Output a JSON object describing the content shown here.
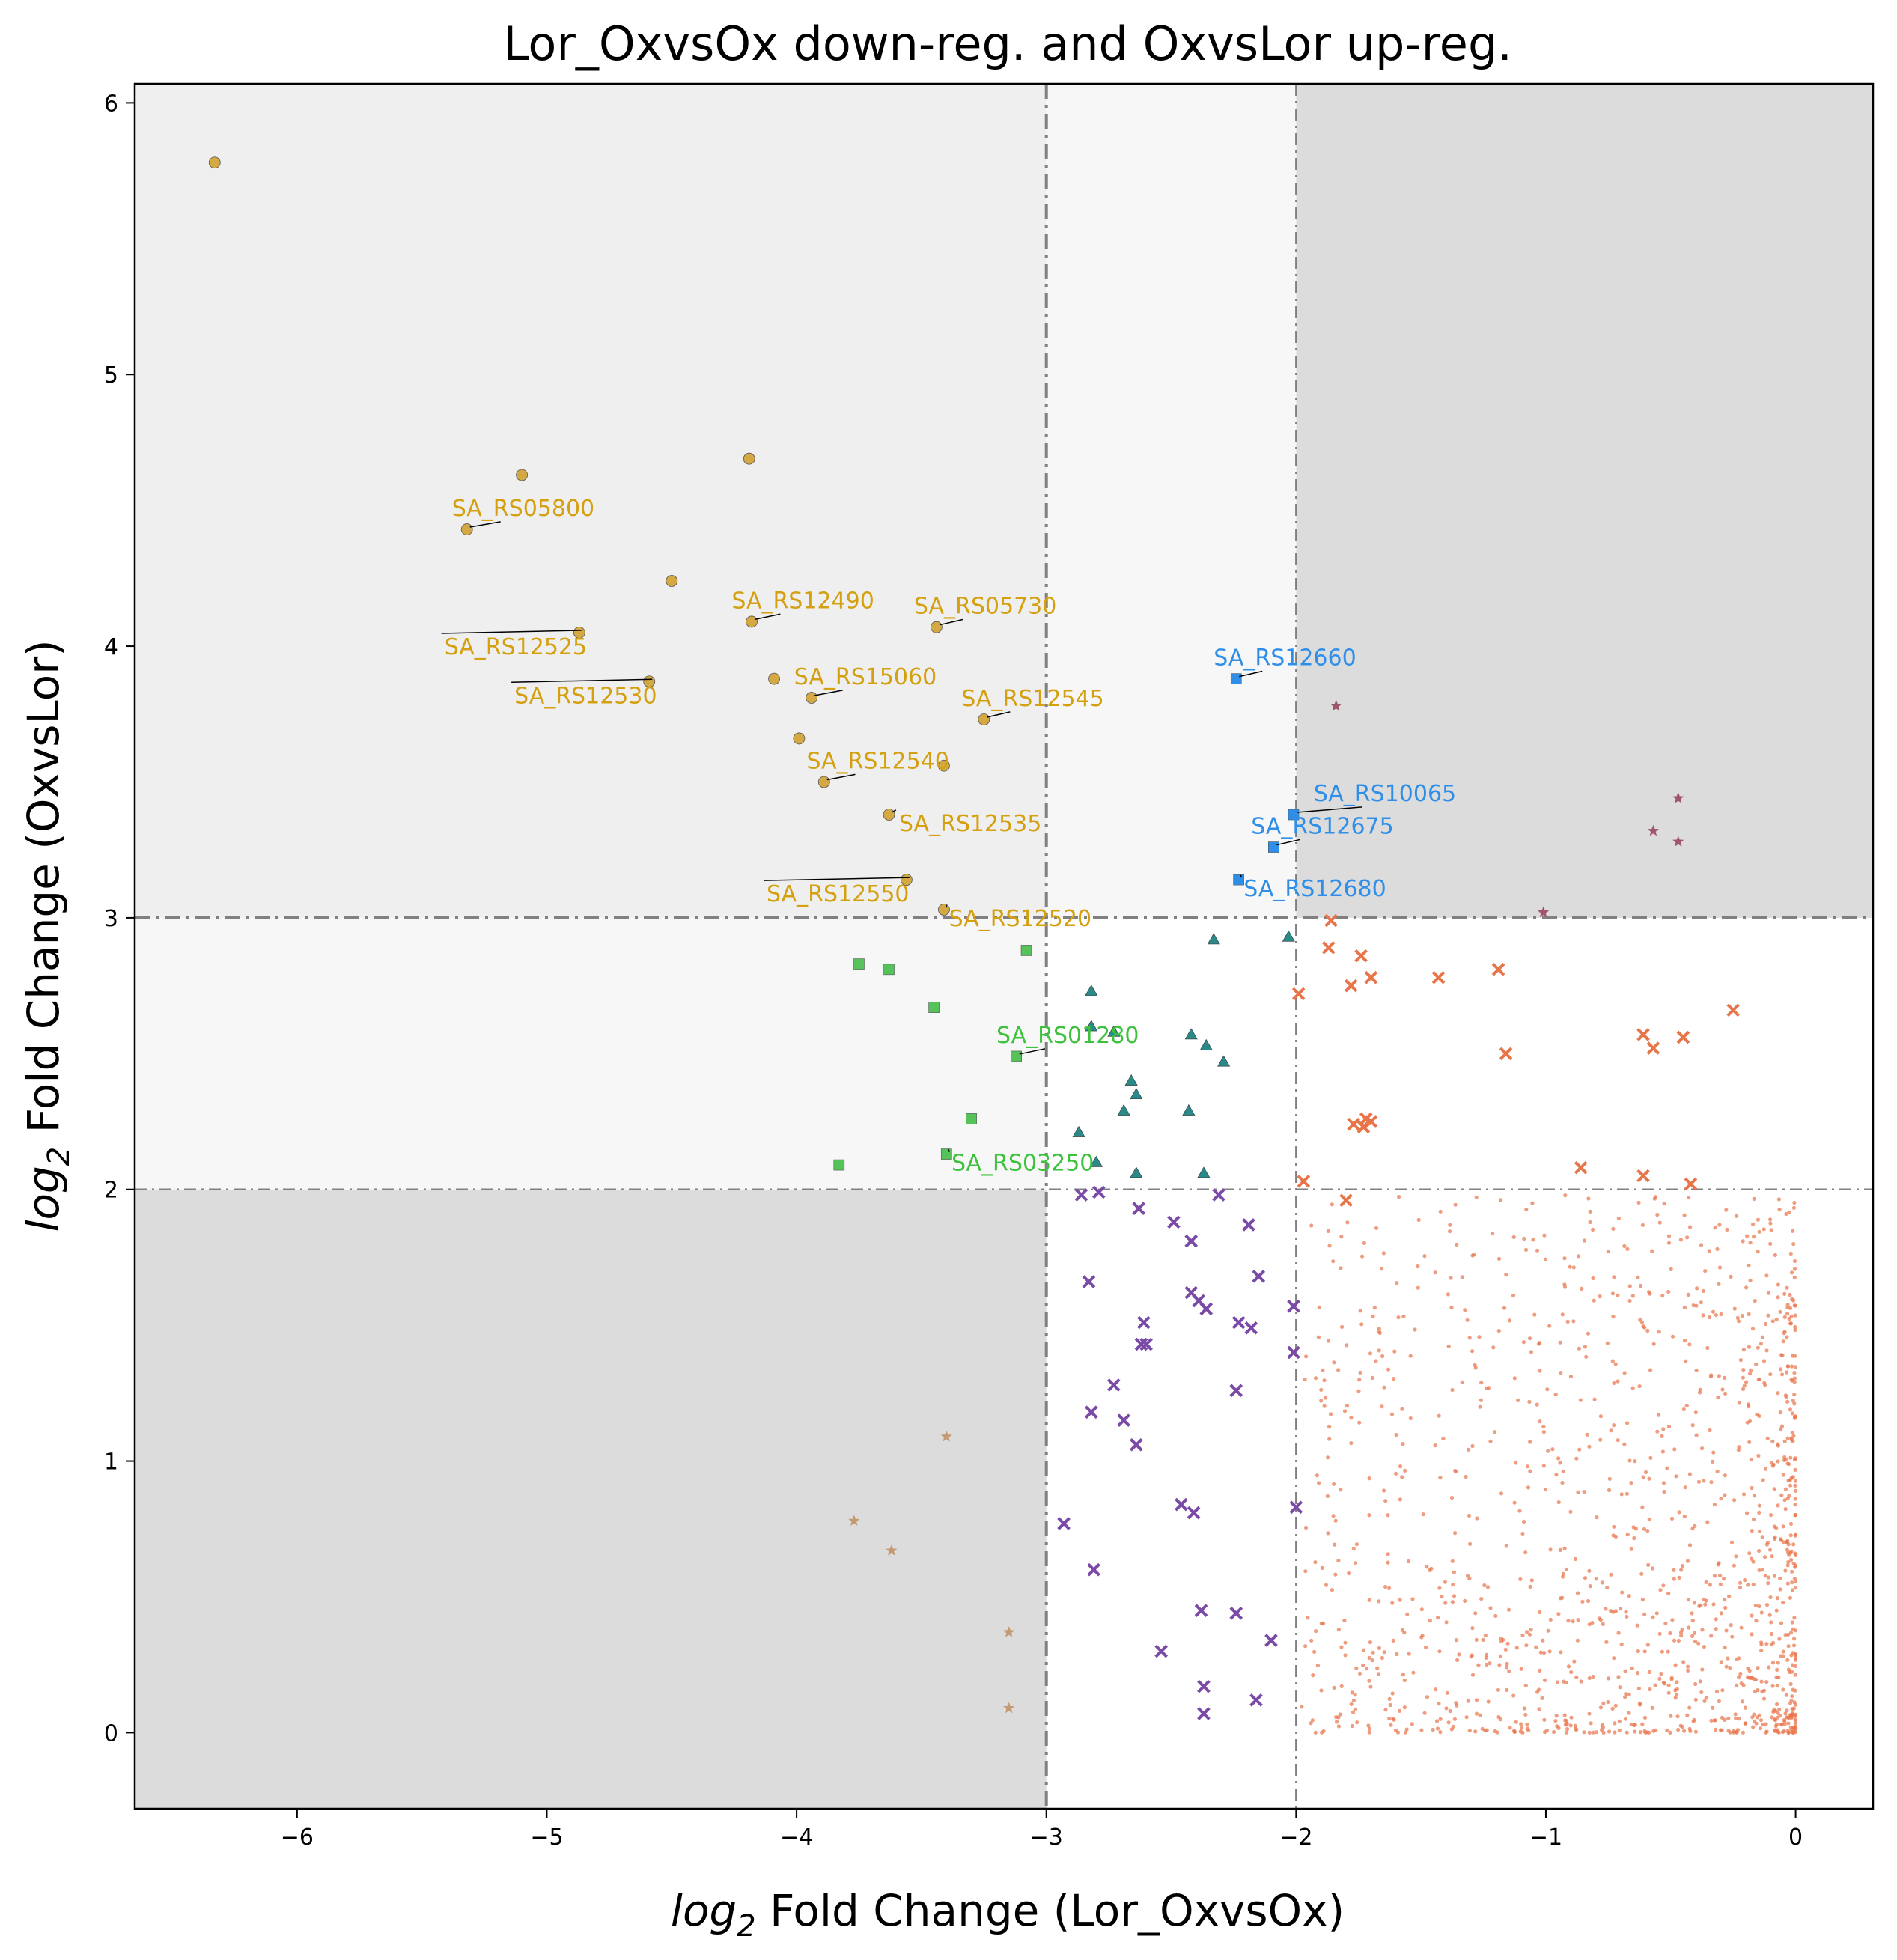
{
  "chart_data": {
    "type": "scatter",
    "title": "Lor_OxvsOx down-reg. and OxvsLor up-reg.",
    "xlabel": {
      "prefix": "log",
      "sub": "2",
      "rest": " Fold Change (Lor_OxvsOx)"
    },
    "ylabel": {
      "prefix": "log",
      "sub": "2",
      "rest": " Fold Change (OxvsLor)"
    },
    "xlim": [
      -6.65,
      0.31
    ],
    "ylim": [
      -0.28,
      6.07
    ],
    "xticks": [
      -6,
      -5,
      -4,
      -3,
      -2,
      -1,
      0
    ],
    "xtick_labels": [
      "−6",
      "−5",
      "−4",
      "−3",
      "−2",
      "−1",
      "0"
    ],
    "yticks": [
      0,
      1,
      2,
      3,
      4,
      5,
      6
    ],
    "ytick_labels": [
      "0",
      "1",
      "2",
      "3",
      "4",
      "5",
      "6"
    ],
    "grid": false,
    "thresholds": {
      "x": [
        -3,
        -2
      ],
      "y": [
        2,
        3
      ]
    },
    "region_colors": {
      "outer": "#dcdcdc",
      "strong": "#efefef",
      "mid": "#f7f7f7"
    },
    "series": [
      {
        "marker": "circle",
        "color": "#d4a843",
        "points": [
          [
            -6.33,
            5.78
          ],
          [
            -5.1,
            4.63
          ],
          [
            -5.32,
            4.43
          ],
          [
            -4.19,
            4.69
          ],
          [
            -4.5,
            4.24
          ],
          [
            -4.87,
            4.05
          ],
          [
            -4.18,
            4.09
          ],
          [
            -3.44,
            4.07
          ],
          [
            -4.59,
            3.87
          ],
          [
            -4.09,
            3.88
          ],
          [
            -3.94,
            3.81
          ],
          [
            -3.25,
            3.73
          ],
          [
            -3.99,
            3.66
          ],
          [
            -3.41,
            3.56
          ],
          [
            -3.89,
            3.5
          ],
          [
            -3.63,
            3.38
          ],
          [
            -3.56,
            3.14
          ],
          [
            -3.41,
            3.03
          ]
        ]
      },
      {
        "marker": "square",
        "color": "#2f8fe8",
        "points": [
          [
            -2.24,
            3.88
          ],
          [
            -2.01,
            3.38
          ],
          [
            -2.09,
            3.26
          ],
          [
            -2.23,
            3.14
          ]
        ]
      },
      {
        "marker": "star",
        "color": "#a0566a",
        "points": [
          [
            -1.84,
            3.78
          ],
          [
            -0.47,
            3.44
          ],
          [
            -0.57,
            3.32
          ],
          [
            -0.47,
            3.28
          ],
          [
            -1.01,
            3.02
          ]
        ]
      },
      {
        "marker": "square",
        "color": "#55c25a",
        "points": [
          [
            -3.75,
            2.83
          ],
          [
            -3.63,
            2.81
          ],
          [
            -3.08,
            2.88
          ],
          [
            -3.45,
            2.67
          ],
          [
            -3.12,
            2.49
          ],
          [
            -3.3,
            2.26
          ],
          [
            -3.4,
            2.13
          ],
          [
            -3.83,
            2.09
          ]
        ]
      },
      {
        "marker": "triangle",
        "color": "#2a8a8a",
        "points": [
          [
            -2.33,
            2.92
          ],
          [
            -2.03,
            2.93
          ],
          [
            -2.82,
            2.73
          ],
          [
            -2.82,
            2.6
          ],
          [
            -2.42,
            2.57
          ],
          [
            -2.36,
            2.53
          ],
          [
            -2.29,
            2.47
          ],
          [
            -2.73,
            2.58
          ],
          [
            -2.66,
            2.4
          ],
          [
            -2.64,
            2.35
          ],
          [
            -2.69,
            2.29
          ],
          [
            -2.43,
            2.29
          ],
          [
            -2.87,
            2.21
          ],
          [
            -2.8,
            2.1
          ],
          [
            -2.64,
            2.06
          ],
          [
            -2.37,
            2.06
          ]
        ]
      },
      {
        "marker": "x",
        "color": "#e8754a",
        "points": [
          [
            -1.86,
            2.99
          ],
          [
            -1.87,
            2.89
          ],
          [
            -1.74,
            2.86
          ],
          [
            -1.7,
            2.78
          ],
          [
            -1.78,
            2.75
          ],
          [
            -1.43,
            2.78
          ],
          [
            -1.19,
            2.81
          ],
          [
            -1.99,
            2.72
          ],
          [
            -1.16,
            2.5
          ],
          [
            -0.25,
            2.66
          ],
          [
            -0.61,
            2.57
          ],
          [
            -0.57,
            2.52
          ],
          [
            -0.45,
            2.56
          ],
          [
            -1.72,
            2.26
          ],
          [
            -1.7,
            2.25
          ],
          [
            -1.77,
            2.24
          ],
          [
            -1.73,
            2.23
          ],
          [
            -1.97,
            2.03
          ],
          [
            -0.86,
            2.08
          ],
          [
            -0.61,
            2.05
          ],
          [
            -0.42,
            2.02
          ],
          [
            -1.8,
            1.96
          ]
        ]
      },
      {
        "marker": "x",
        "color": "#7a4aa6",
        "points": [
          [
            -2.86,
            1.98
          ],
          [
            -2.79,
            1.99
          ],
          [
            -2.63,
            1.93
          ],
          [
            -2.49,
            1.88
          ],
          [
            -2.31,
            1.98
          ],
          [
            -2.19,
            1.87
          ],
          [
            -2.42,
            1.81
          ],
          [
            -2.83,
            1.66
          ],
          [
            -2.15,
            1.68
          ],
          [
            -2.42,
            1.62
          ],
          [
            -2.39,
            1.59
          ],
          [
            -2.36,
            1.56
          ],
          [
            -2.01,
            1.57
          ],
          [
            -2.61,
            1.51
          ],
          [
            -2.23,
            1.51
          ],
          [
            -2.18,
            1.49
          ],
          [
            -2.62,
            1.43
          ],
          [
            -2.6,
            1.43
          ],
          [
            -2.01,
            1.4
          ],
          [
            -2.73,
            1.28
          ],
          [
            -2.24,
            1.26
          ],
          [
            -2.82,
            1.18
          ],
          [
            -2.69,
            1.15
          ],
          [
            -2.64,
            1.06
          ],
          [
            -2.46,
            0.84
          ],
          [
            -2.41,
            0.81
          ],
          [
            -2.93,
            0.77
          ],
          [
            -2.0,
            0.83
          ],
          [
            -2.81,
            0.6
          ],
          [
            -2.38,
            0.45
          ],
          [
            -2.24,
            0.44
          ],
          [
            -2.1,
            0.34
          ],
          [
            -2.54,
            0.3
          ],
          [
            -2.37,
            0.17
          ],
          [
            -2.16,
            0.12
          ],
          [
            -2.37,
            0.07
          ]
        ]
      },
      {
        "marker": "star",
        "color": "#c49a72",
        "points": [
          [
            -3.4,
            1.09
          ],
          [
            -3.77,
            0.78
          ],
          [
            -3.62,
            0.67
          ],
          [
            -3.15,
            0.37
          ],
          [
            -3.15,
            0.09
          ]
        ]
      }
    ],
    "background_series": {
      "marker": "dot",
      "color": "#e8734a",
      "count": 1300,
      "x_range": [
        -1.98,
        0
      ],
      "y_range": [
        0,
        1.98
      ]
    },
    "annotations": [
      {
        "text": "SA_RS05800",
        "color": "#d4a010",
        "point": [
          -5.32,
          4.43
        ],
        "text_xy": [
          -5.38,
          4.48
        ]
      },
      {
        "text": "SA_RS12490",
        "color": "#d4a010",
        "point": [
          -4.18,
          4.09
        ],
        "text_xy": [
          -4.26,
          4.14
        ]
      },
      {
        "text": "SA_RS05730",
        "color": "#d4a010",
        "point": [
          -3.44,
          4.07
        ],
        "text_xy": [
          -3.53,
          4.12
        ]
      },
      {
        "text": "SA_RS12525",
        "color": "#d4a010",
        "point": [
          -4.87,
          4.05
        ],
        "text_xy": [
          -5.41,
          3.97
        ]
      },
      {
        "text": "SA_RS12530",
        "color": "#d4a010",
        "point": [
          -4.59,
          3.87
        ],
        "text_xy": [
          -5.13,
          3.79
        ]
      },
      {
        "text": "SA_RS15060",
        "color": "#d4a010",
        "point": [
          -3.94,
          3.81
        ],
        "text_xy": [
          -4.01,
          3.86
        ]
      },
      {
        "text": "SA_RS12545",
        "color": "#d4a010",
        "point": [
          -3.25,
          3.73
        ],
        "text_xy": [
          -3.34,
          3.78
        ]
      },
      {
        "text": "SA_RS12540",
        "color": "#d4a010",
        "point": [
          -3.89,
          3.5
        ],
        "text_xy": [
          -3.96,
          3.55
        ]
      },
      {
        "text": "SA_RS12535",
        "color": "#d4a010",
        "point": [
          -3.63,
          3.38
        ],
        "text_xy": [
          -3.59,
          3.32
        ]
      },
      {
        "text": "SA_RS12550",
        "color": "#d4a010",
        "point": [
          -3.56,
          3.14
        ],
        "text_xy": [
          -4.12,
          3.06
        ]
      },
      {
        "text": "SA_RS12520",
        "color": "#d4a010",
        "point": [
          -3.41,
          3.03
        ],
        "text_xy": [
          -3.39,
          2.97
        ]
      },
      {
        "text": "SA_RS12660",
        "color": "#2f8fe8",
        "point": [
          -2.24,
          3.88
        ],
        "text_xy": [
          -2.33,
          3.93
        ]
      },
      {
        "text": "SA_RS10065",
        "color": "#2f8fe8",
        "point": [
          -2.01,
          3.38
        ],
        "text_xy": [
          -1.93,
          3.43
        ]
      },
      {
        "text": "SA_RS12675",
        "color": "#2f8fe8",
        "point": [
          -2.09,
          3.26
        ],
        "text_xy": [
          -2.18,
          3.31
        ]
      },
      {
        "text": "SA_RS12680",
        "color": "#2f8fe8",
        "point": [
          -2.23,
          3.14
        ],
        "text_xy": [
          -2.21,
          3.08
        ]
      },
      {
        "text": "SA_RS01280",
        "color": "#3dc23d",
        "point": [
          -3.12,
          2.49
        ],
        "text_xy": [
          -3.2,
          2.54
        ]
      },
      {
        "text": "SA_RS03250",
        "color": "#3dc23d",
        "point": [
          -3.4,
          2.13
        ],
        "text_xy": [
          -3.38,
          2.07
        ]
      }
    ]
  }
}
